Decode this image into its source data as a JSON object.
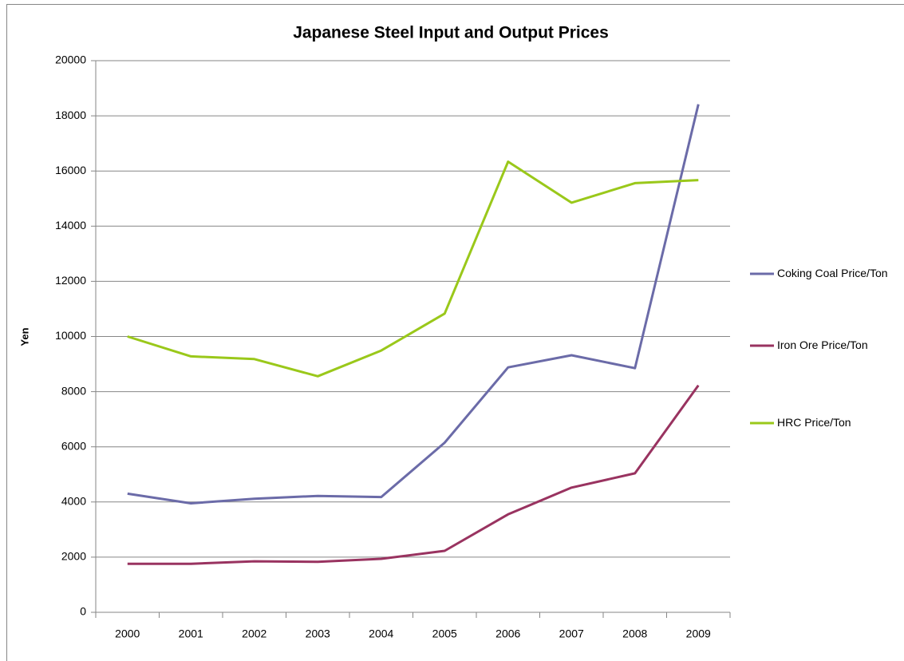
{
  "chart_data": {
    "type": "line",
    "title": "Japanese Steel Input and Output Prices",
    "y_label": "Yen",
    "categories": [
      "2000",
      "2001",
      "2002",
      "2003",
      "2004",
      "2005",
      "2006",
      "2007",
      "2008",
      "2009"
    ],
    "series": [
      {
        "name": "Coking Coal Price/Ton",
        "color": "#6b6ba8",
        "values": [
          4300,
          3950,
          4120,
          4220,
          4180,
          6150,
          8880,
          9320,
          8850,
          18420
        ]
      },
      {
        "name": "Iron Ore Price/Ton",
        "color": "#993360",
        "values": [
          1760,
          1760,
          1850,
          1830,
          1940,
          2230,
          3550,
          4520,
          5040,
          8230
        ]
      },
      {
        "name": "HRC Price/Ton",
        "color": "#9ac81a",
        "values": [
          10000,
          9280,
          9180,
          8560,
          9490,
          10830,
          16340,
          14850,
          15560,
          15670
        ]
      }
    ],
    "ylim": [
      0,
      20000
    ],
    "yticks": [
      0,
      2000,
      4000,
      6000,
      8000,
      10000,
      12000,
      14000,
      16000,
      18000,
      20000
    ],
    "grid": true,
    "legend": "right"
  }
}
